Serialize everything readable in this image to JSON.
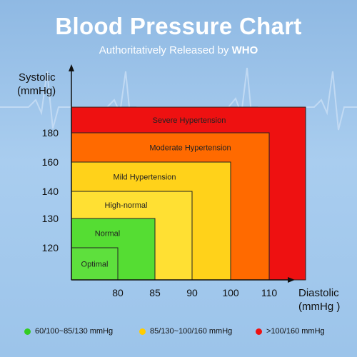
{
  "header": {
    "title": "Blood Pressure Chart",
    "subtitle_prefix": "Authoritatively Released by ",
    "subtitle_bold": "WHO"
  },
  "chart_data": {
    "type": "area",
    "ylabel_line1": "Systolic",
    "ylabel_line2": "(mmHg)",
    "xlabel_line1": "Diastolic",
    "xlabel_line2": "(mmHg )",
    "x_ticks": [
      80,
      85,
      90,
      100,
      110
    ],
    "y_ticks": [
      120,
      130,
      140,
      160,
      180
    ],
    "zones": [
      {
        "label": "Severe Hypertension",
        "color": "#ee1111"
      },
      {
        "label": "Moderate Hypertension",
        "color": "#ff6a00",
        "max_diastolic": 110,
        "max_systolic": 180
      },
      {
        "label": "Mild Hypertension",
        "color": "#ffd21a",
        "max_diastolic": 100,
        "max_systolic": 160
      },
      {
        "label": "High-normal",
        "color": "#ffe033",
        "max_diastolic": 90,
        "max_systolic": 140
      },
      {
        "label": "Normal",
        "color": "#55dd33",
        "max_diastolic": 85,
        "max_systolic": 130
      },
      {
        "label": "Optimal",
        "color": "#5ee03d",
        "max_diastolic": 80,
        "max_systolic": 120
      }
    ],
    "grid": false
  },
  "legend": [
    {
      "label": "60/100~85/130 mmHg",
      "color": "#33cc22"
    },
    {
      "label": "85/130~100/160 mmHg",
      "color": "#ffcc00"
    },
    {
      "label": ">100/160 mmHg",
      "color": "#ee1111"
    }
  ]
}
